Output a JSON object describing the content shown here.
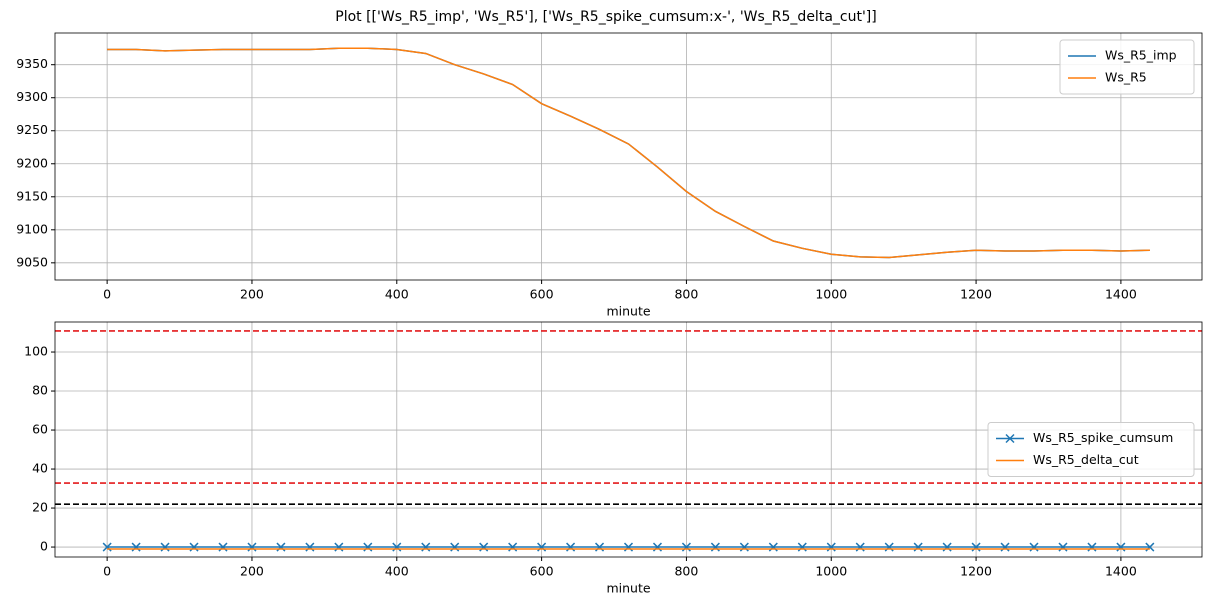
{
  "title": "Plot [['Ws_R5_imp', 'Ws_R5'], ['Ws_R5_spike_cumsum:x-', 'Ws_R5_delta_cut']]",
  "chart_data": [
    {
      "type": "line",
      "xlabel": "minute",
      "x": [
        0,
        40,
        80,
        120,
        160,
        200,
        240,
        280,
        320,
        360,
        400,
        440,
        480,
        520,
        560,
        600,
        640,
        680,
        720,
        760,
        800,
        840,
        880,
        920,
        960,
        1000,
        1040,
        1080,
        1120,
        1160,
        1200,
        1240,
        1280,
        1320,
        1360,
        1400,
        1440
      ],
      "series": [
        {
          "name": "Ws_R5_imp",
          "color": "#1f77b4",
          "values": [
            9373,
            9373,
            9371,
            9372,
            9373,
            9373,
            9373,
            9373,
            9375,
            9375,
            9373,
            9367,
            9350,
            9336,
            9320,
            9291,
            9272,
            9252,
            9230,
            9195,
            9158,
            9128,
            9105,
            9083,
            9072,
            9063,
            9059,
            9058,
            9062,
            9066,
            9069,
            9068,
            9068,
            9069,
            9069,
            9068,
            9069
          ]
        },
        {
          "name": "Ws_R5",
          "color": "#ff7f0e",
          "values": [
            9373,
            9373,
            9371,
            9372,
            9373,
            9373,
            9373,
            9373,
            9375,
            9375,
            9373,
            9367,
            9350,
            9336,
            9320,
            9291,
            9272,
            9252,
            9230,
            9195,
            9158,
            9128,
            9105,
            9083,
            9072,
            9063,
            9059,
            9058,
            9062,
            9066,
            9069,
            9068,
            9068,
            9069,
            9069,
            9068,
            9069
          ]
        }
      ],
      "xlim": [
        -72,
        1512
      ],
      "xticks": [
        0,
        200,
        400,
        600,
        800,
        1000,
        1200,
        1400
      ],
      "ylim": [
        9024,
        9398
      ],
      "yticks": [
        9050,
        9100,
        9150,
        9200,
        9250,
        9300,
        9350
      ],
      "grid": true,
      "legend": "upper-right"
    },
    {
      "type": "line",
      "xlabel": "minute",
      "x": [
        0,
        40,
        80,
        120,
        160,
        200,
        240,
        280,
        320,
        360,
        400,
        440,
        480,
        520,
        560,
        600,
        640,
        680,
        720,
        760,
        800,
        840,
        880,
        920,
        960,
        1000,
        1040,
        1080,
        1120,
        1160,
        1200,
        1240,
        1280,
        1320,
        1360,
        1400,
        1440
      ],
      "series": [
        {
          "name": "Ws_R5_spike_cumsum",
          "color": "#1f77b4",
          "marker": "x",
          "values": [
            0,
            0,
            0,
            0,
            0,
            0,
            0,
            0,
            0,
            0,
            0,
            0,
            0,
            0,
            0,
            0,
            0,
            0,
            0,
            0,
            0,
            0,
            0,
            0,
            0,
            0,
            0,
            0,
            0,
            0,
            0,
            0,
            0,
            0,
            0,
            0,
            0
          ]
        },
        {
          "name": "Ws_R5_delta_cut",
          "color": "#ff7f0e",
          "values": [
            -1,
            -1,
            -1,
            -1,
            -1,
            -1,
            -1,
            -1,
            -1,
            -1,
            -1,
            -1,
            -1,
            -1,
            -1,
            -1,
            -1,
            -1,
            -1,
            -1,
            -1,
            -1,
            -1,
            -1,
            -1,
            -1,
            -1,
            -1,
            -1,
            -1,
            -1,
            -1,
            -1,
            -1,
            -1,
            -1,
            -1
          ]
        }
      ],
      "hlines": [
        {
          "value": 110.8,
          "color": "#e41a1c"
        },
        {
          "value": 32.8,
          "color": "#e41a1c"
        },
        {
          "value": 22,
          "color": "#000000"
        }
      ],
      "xlim": [
        -72,
        1512
      ],
      "xticks": [
        0,
        200,
        400,
        600,
        800,
        1000,
        1200,
        1400
      ],
      "ylim": [
        -5.1,
        115.4
      ],
      "yticks": [
        0,
        20,
        40,
        60,
        80,
        100
      ],
      "grid": true,
      "legend": "center-right"
    }
  ]
}
